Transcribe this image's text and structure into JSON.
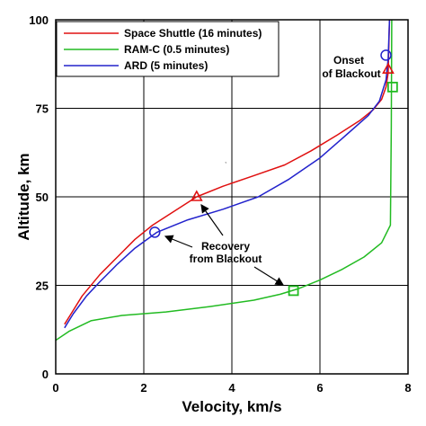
{
  "chart_data": {
    "type": "line",
    "xlabel": "Velocity, km/s",
    "ylabel": "Altitude, km",
    "xlim": [
      0,
      8
    ],
    "ylim": [
      0,
      100
    ],
    "xticks": [
      0,
      2,
      4,
      6,
      8
    ],
    "yticks": [
      0,
      25,
      50,
      75,
      100
    ],
    "grid": true,
    "legend_position": "top-left",
    "series": [
      {
        "name": "Space Shuttle (16 minutes)",
        "color": "#e01010",
        "points": [
          [
            0.2,
            14
          ],
          [
            0.35,
            17
          ],
          [
            0.6,
            22
          ],
          [
            1.0,
            28
          ],
          [
            1.4,
            33
          ],
          [
            1.8,
            38
          ],
          [
            2.2,
            42
          ],
          [
            2.7,
            46
          ],
          [
            3.2,
            50
          ],
          [
            3.8,
            53
          ],
          [
            4.5,
            56
          ],
          [
            5.2,
            59
          ],
          [
            5.8,
            63
          ],
          [
            6.4,
            67.5
          ],
          [
            6.9,
            71.5
          ],
          [
            7.2,
            74.5
          ],
          [
            7.4,
            77.5
          ],
          [
            7.5,
            81
          ],
          [
            7.55,
            85
          ],
          [
            7.58,
            100
          ]
        ],
        "marker": {
          "shape": "triangle",
          "x": 3.2,
          "y": 50
        }
      },
      {
        "name": "RAM-C (0.5 minutes)",
        "color": "#22bb22",
        "points": [
          [
            0.0,
            9.5
          ],
          [
            0.3,
            12
          ],
          [
            0.8,
            15
          ],
          [
            1.5,
            16.5
          ],
          [
            2.5,
            17.5
          ],
          [
            3.5,
            19
          ],
          [
            4.5,
            20.8
          ],
          [
            5.1,
            22.5
          ],
          [
            5.5,
            24
          ],
          [
            6.0,
            26.5
          ],
          [
            6.5,
            29.5
          ],
          [
            7.0,
            33
          ],
          [
            7.4,
            37
          ],
          [
            7.6,
            42
          ],
          [
            7.62,
            70
          ],
          [
            7.63,
            100
          ]
        ],
        "marker": {
          "shape": "square",
          "x": 5.4,
          "y": 23.5
        }
      },
      {
        "name": "ARD (5 minutes)",
        "color": "#2222cc",
        "points": [
          [
            0.2,
            13
          ],
          [
            0.4,
            17
          ],
          [
            0.7,
            22
          ],
          [
            1.0,
            26
          ],
          [
            1.4,
            31
          ],
          [
            1.8,
            35.5
          ],
          [
            2.3,
            40
          ],
          [
            3.0,
            43.5
          ],
          [
            3.8,
            46.5
          ],
          [
            4.6,
            50
          ],
          [
            5.3,
            55
          ],
          [
            6.0,
            61
          ],
          [
            6.6,
            67.5
          ],
          [
            7.1,
            73
          ],
          [
            7.35,
            77
          ],
          [
            7.5,
            83
          ],
          [
            7.55,
            89
          ],
          [
            7.58,
            100
          ]
        ],
        "marker": {
          "shape": "circle",
          "x": 2.25,
          "y": 40
        }
      }
    ],
    "annotations": [
      {
        "text": [
          "Onset",
          "of Blackout"
        ],
        "markers": [
          {
            "shape": "circle",
            "x": 7.5,
            "y": 90
          },
          {
            "shape": "triangle",
            "x": 7.55,
            "y": 86
          },
          {
            "shape": "square",
            "x": 7.65,
            "y": 81
          }
        ]
      },
      {
        "text": [
          "Recovery",
          "from Blackout"
        ]
      }
    ]
  }
}
